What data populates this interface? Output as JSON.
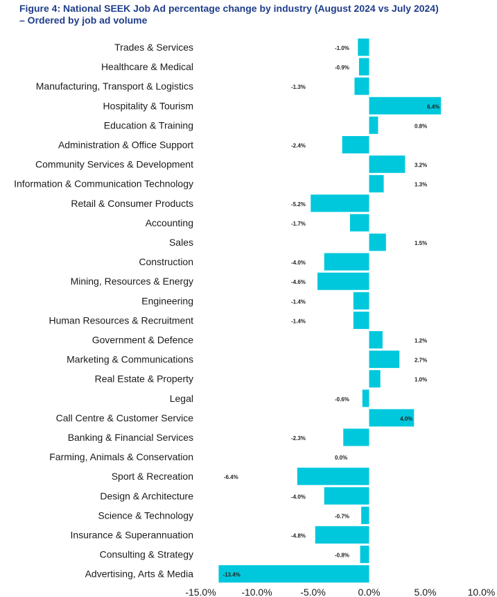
{
  "title_line1": "Figure 4: National SEEK Job Ad percentage change by industry (August 2024 vs July 2024)",
  "title_line2": "– Ordered by job ad volume",
  "chart_data": {
    "type": "bar",
    "orientation": "horizontal",
    "bar_color": "#00C8DC",
    "categories": [
      "Trades & Services",
      "Healthcare & Medical",
      "Manufacturing, Transport & Logistics",
      "Hospitality & Tourism",
      "Education & Training",
      "Administration & Office Support",
      "Community Services & Development",
      "Information & Communication Technology",
      "Retail & Consumer Products",
      "Accounting",
      "Sales",
      "Construction",
      "Mining, Resources & Energy",
      "Engineering",
      "Human Resources & Recruitment",
      "Government & Defence",
      "Marketing & Communications",
      "Real Estate & Property",
      "Legal",
      "Call Centre & Customer Service",
      "Banking & Financial Services",
      "Farming, Animals & Conservation",
      "Sport & Recreation",
      "Design & Architecture",
      "Science & Technology",
      "Insurance & Superannuation",
      "Consulting & Strategy",
      "Advertising, Arts & Media"
    ],
    "values": [
      -1.0,
      -0.9,
      -1.3,
      6.4,
      0.8,
      -2.4,
      3.2,
      1.3,
      -5.2,
      -1.7,
      1.5,
      -4.0,
      -4.6,
      -1.4,
      -1.4,
      1.2,
      2.7,
      1.0,
      -0.6,
      4.0,
      -2.3,
      0.0,
      -6.4,
      -4.0,
      -0.7,
      -4.8,
      -0.8,
      -13.4
    ],
    "data_labels": [
      "-1.0%",
      "-0.9%",
      "-1.3%",
      "6.4%",
      "0.8%",
      "-2.4%",
      "3.2%",
      "1.3%",
      "-5.2%",
      "-1.7%",
      "1.5%",
      "-4.0%",
      "-4.6%",
      "-1.4%",
      "-1.4%",
      "1.2%",
      "2.7%",
      "1.0%",
      "-0.6%",
      "4.0%",
      "-2.3%",
      "0.0%",
      "-6.4%",
      "-4.0%",
      "-0.7%",
      "-4.8%",
      "-0.8%",
      "-13.4%"
    ],
    "xlim": [
      -15,
      10
    ],
    "x_ticks": [
      -15,
      -10,
      -5,
      0,
      5,
      10
    ],
    "x_tick_labels": [
      "-15.0%",
      "-10.0%",
      "-5.0%",
      "0.0%",
      "5.0%",
      "10.0%"
    ],
    "xlabel": "",
    "ylabel": "",
    "grid": false,
    "legend": "none"
  }
}
